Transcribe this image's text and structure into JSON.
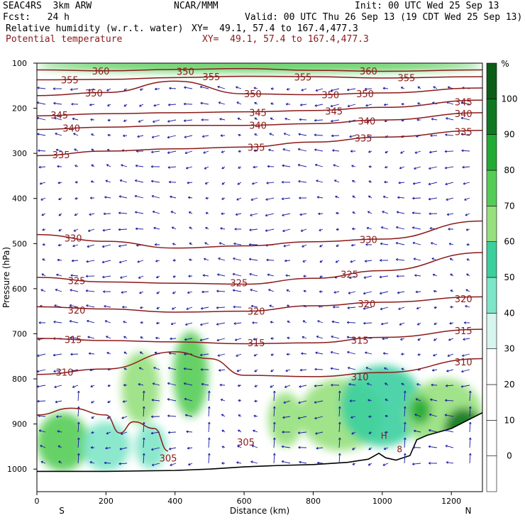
{
  "header": {
    "model": "SEAC4RS  3km ARW",
    "org": "NCAR/MMM",
    "init": "Init: 00 UTC Wed 25 Sep 13",
    "fcst": "Fcst:   24 h",
    "valid": "Valid: 00 UTC Thu 26 Sep 13 (19 CDT Wed 25 Sep 13)",
    "field1": "Relative humidity (w.r.t. water)",
    "field1_xy": "XY=  49.1, 57.4 to 167.4,477.3",
    "field2": "Potential temperature",
    "field2_xy": "XY=  49.1, 57.4 to 167.4,477.3"
  },
  "chart_data": {
    "type": "contour-cross-section",
    "xlabel": "Distance (km)",
    "ylabel": "Pressure (hPa)",
    "xlim": [
      0,
      1290
    ],
    "ylim": [
      1050,
      100
    ],
    "x_ticks": [
      0,
      200,
      400,
      600,
      800,
      1000,
      1200
    ],
    "y_ticks": [
      100,
      200,
      300,
      400,
      500,
      600,
      700,
      800,
      900,
      1000
    ],
    "x_end_labels": {
      "left": "S",
      "right": "N"
    },
    "colorbar": {
      "unit": "%",
      "levels": [
        0,
        10,
        20,
        30,
        40,
        50,
        60,
        70,
        80,
        90,
        100
      ],
      "colors": [
        "#ffffff",
        "#ffffff",
        "#ffffff",
        "#ffffff",
        "#d6f5ec",
        "#7ee6c8",
        "#3ccf9e",
        "#96e07d",
        "#55cc55",
        "#22aa33",
        "#117722",
        "#0b5e18"
      ]
    },
    "theta_contours": [
      {
        "level": 360,
        "pts": [
          [
            0,
            115
          ],
          [
            200,
            117
          ],
          [
            400,
            114
          ],
          [
            600,
            112
          ],
          [
            800,
            116
          ],
          [
            1000,
            118
          ],
          [
            1290,
            115
          ]
        ],
        "labels": [
          [
            185,
            117
          ],
          [
            960,
            117
          ]
        ]
      },
      {
        "level": 355,
        "pts": [
          [
            0,
            137
          ],
          [
            200,
            136
          ],
          [
            400,
            132
          ],
          [
            600,
            129
          ],
          [
            800,
            130
          ],
          [
            1000,
            133
          ],
          [
            1290,
            130
          ]
        ],
        "labels": [
          [
            95,
            137
          ],
          [
            505,
            130
          ],
          [
            770,
            131
          ],
          [
            1070,
            132
          ]
        ]
      },
      {
        "level": 350,
        "pts": [
          [
            0,
            172
          ],
          [
            200,
            165
          ],
          [
            400,
            140
          ],
          [
            600,
            168
          ],
          [
            800,
            170
          ],
          [
            1000,
            166
          ],
          [
            1290,
            155
          ]
        ],
        "labels": [
          [
            165,
            166
          ],
          [
            430,
            118
          ],
          [
            625,
            168
          ],
          [
            850,
            170
          ],
          [
            950,
            168
          ]
        ]
      },
      {
        "level": 345,
        "pts": [
          [
            0,
            217
          ],
          [
            200,
            212
          ],
          [
            400,
            210
          ],
          [
            600,
            208
          ],
          [
            800,
            205
          ],
          [
            1000,
            198
          ],
          [
            1290,
            182
          ]
        ],
        "labels": [
          [
            65,
            215
          ],
          [
            640,
            209
          ],
          [
            860,
            206
          ],
          [
            1235,
            186
          ]
        ]
      },
      {
        "level": 340,
        "pts": [
          [
            0,
            247
          ],
          [
            200,
            242
          ],
          [
            400,
            238
          ],
          [
            600,
            238
          ],
          [
            800,
            234
          ],
          [
            1000,
            226
          ],
          [
            1290,
            210
          ]
        ],
        "labels": [
          [
            100,
            244
          ],
          [
            640,
            238
          ],
          [
            955,
            228
          ],
          [
            1235,
            212
          ]
        ]
      },
      {
        "level": 335,
        "pts": [
          [
            0,
            305
          ],
          [
            200,
            295
          ],
          [
            400,
            290
          ],
          [
            600,
            286
          ],
          [
            800,
            275
          ],
          [
            1000,
            264
          ],
          [
            1290,
            249
          ]
        ],
        "labels": [
          [
            70,
            303
          ],
          [
            635,
            286
          ],
          [
            945,
            266
          ],
          [
            1235,
            252
          ]
        ]
      },
      {
        "level": 330,
        "pts": [
          [
            0,
            480
          ],
          [
            200,
            495
          ],
          [
            400,
            510
          ],
          [
            600,
            505
          ],
          [
            800,
            496
          ],
          [
            1000,
            490
          ],
          [
            1290,
            450
          ]
        ],
        "labels": [
          [
            105,
            488
          ],
          [
            960,
            491
          ]
        ]
      },
      {
        "level": 325,
        "pts": [
          [
            0,
            575
          ],
          [
            200,
            585
          ],
          [
            400,
            588
          ],
          [
            600,
            590
          ],
          [
            800,
            577
          ],
          [
            1000,
            560
          ],
          [
            1290,
            520
          ]
        ],
        "labels": [
          [
            115,
            582
          ],
          [
            585,
            587
          ],
          [
            905,
            568
          ]
        ]
      },
      {
        "level": 320,
        "pts": [
          [
            0,
            640
          ],
          [
            200,
            645
          ],
          [
            400,
            652
          ],
          [
            600,
            650
          ],
          [
            800,
            638
          ],
          [
            1000,
            630
          ],
          [
            1290,
            618
          ]
        ],
        "labels": [
          [
            115,
            647
          ],
          [
            635,
            650
          ],
          [
            955,
            633
          ],
          [
            1235,
            622
          ]
        ]
      },
      {
        "level": 315,
        "pts": [
          [
            0,
            710
          ],
          [
            200,
            715
          ],
          [
            400,
            718
          ],
          [
            600,
            722
          ],
          [
            800,
            720
          ],
          [
            1000,
            708
          ],
          [
            1290,
            690
          ]
        ],
        "labels": [
          [
            105,
            713
          ],
          [
            635,
            720
          ],
          [
            935,
            714
          ],
          [
            1235,
            693
          ]
        ]
      },
      {
        "level": 310,
        "pts": [
          [
            0,
            790
          ],
          [
            200,
            778
          ],
          [
            400,
            740
          ],
          [
            500,
            755
          ],
          [
            600,
            792
          ],
          [
            800,
            795
          ],
          [
            1000,
            786
          ],
          [
            1290,
            755
          ]
        ],
        "labels": [
          [
            80,
            785
          ],
          [
            935,
            795
          ],
          [
            1235,
            762
          ]
        ]
      },
      {
        "level": 305,
        "pts": [
          [
            0,
            880
          ],
          [
            100,
            865
          ],
          [
            200,
            880
          ],
          [
            240,
            920
          ],
          [
            280,
            895
          ],
          [
            340,
            910
          ],
          [
            380,
            960
          ]
        ],
        "labels": [
          [
            380,
            975
          ],
          [
            605,
            940
          ]
        ]
      }
    ],
    "extra_labels": [
      {
        "text": "H",
        "x": 1005,
        "y": 925
      },
      {
        "text": "8",
        "x": 1050,
        "y": 955
      }
    ],
    "rh_patches": [
      {
        "cx": 75,
        "cy": 940,
        "rx": 75,
        "ry": 65,
        "rh": 70
      },
      {
        "cx": 200,
        "cy": 950,
        "rx": 70,
        "ry": 55,
        "rh": 40
      },
      {
        "cx": 300,
        "cy": 820,
        "rx": 55,
        "ry": 80,
        "rh": 60
      },
      {
        "cx": 445,
        "cy": 790,
        "rx": 50,
        "ry": 95,
        "rh": 70
      },
      {
        "cx": 330,
        "cy": 950,
        "rx": 45,
        "ry": 50,
        "rh": 40
      },
      {
        "cx": 720,
        "cy": 890,
        "rx": 50,
        "ry": 60,
        "rh": 60
      },
      {
        "cx": 880,
        "cy": 880,
        "rx": 120,
        "ry": 80,
        "rh": 60
      },
      {
        "cx": 1000,
        "cy": 860,
        "rx": 120,
        "ry": 90,
        "rh": 50
      },
      {
        "cx": 1180,
        "cy": 880,
        "rx": 110,
        "ry": 80,
        "rh": 60
      },
      {
        "cx": 1235,
        "cy": 915,
        "rx": 55,
        "ry": 50,
        "rh": 90
      },
      {
        "cx": 1110,
        "cy": 870,
        "rx": 30,
        "ry": 30,
        "rh": 80
      },
      {
        "cx": 645,
        "cy": 105,
        "rx": 645,
        "ry": 15,
        "rh": 70
      }
    ],
    "terrain": [
      [
        0,
        1005
      ],
      [
        200,
        1005
      ],
      [
        400,
        1003
      ],
      [
        500,
        1000
      ],
      [
        600,
        995
      ],
      [
        700,
        992
      ],
      [
        800,
        990
      ],
      [
        900,
        985
      ],
      [
        960,
        978
      ],
      [
        990,
        965
      ],
      [
        1010,
        975
      ],
      [
        1040,
        980
      ],
      [
        1080,
        970
      ],
      [
        1100,
        935
      ],
      [
        1130,
        925
      ],
      [
        1200,
        910
      ],
      [
        1290,
        875
      ]
    ]
  }
}
